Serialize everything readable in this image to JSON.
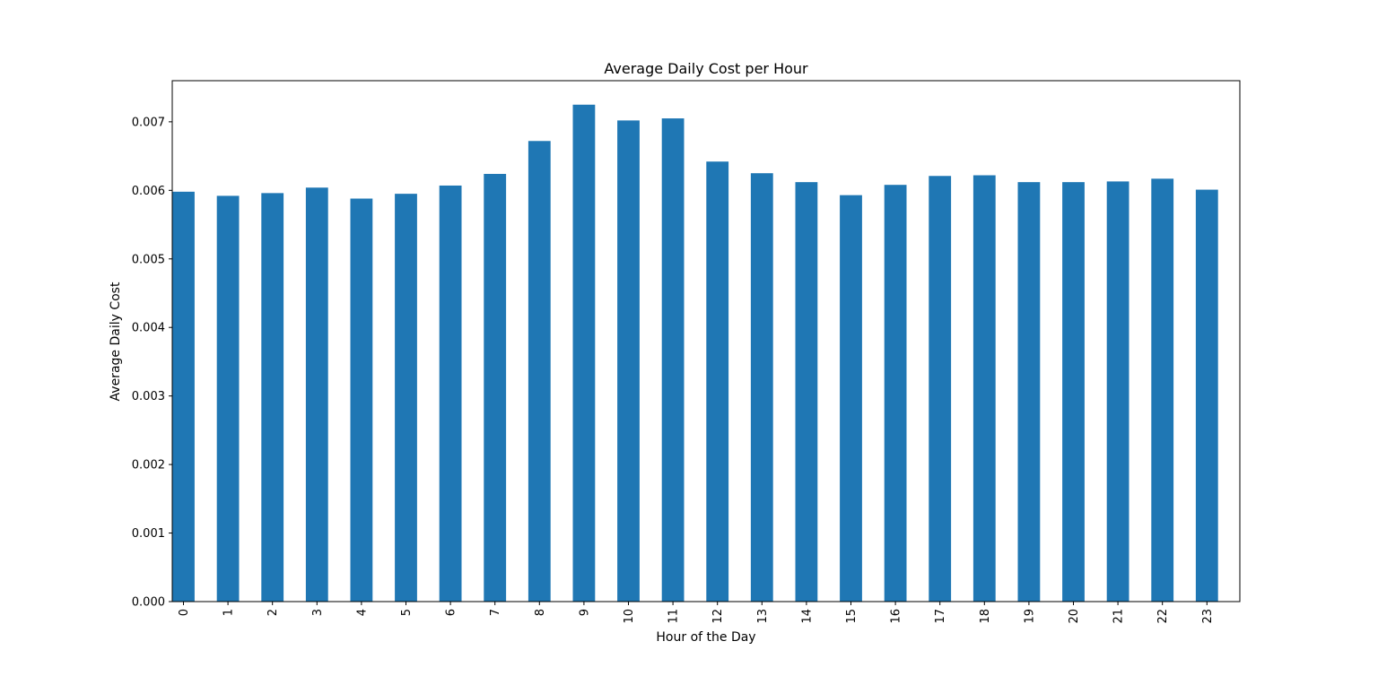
{
  "chart_data": {
    "type": "bar",
    "title": "Average Daily Cost per Hour",
    "xlabel": "Hour of the Day",
    "ylabel": "Average Daily Cost",
    "categories": [
      "0",
      "1",
      "2",
      "3",
      "4",
      "5",
      "6",
      "7",
      "8",
      "9",
      "10",
      "11",
      "12",
      "13",
      "14",
      "15",
      "16",
      "17",
      "18",
      "19",
      "20",
      "21",
      "22",
      "23"
    ],
    "values": [
      0.00598,
      0.00592,
      0.00596,
      0.00604,
      0.00588,
      0.00595,
      0.00607,
      0.00624,
      0.00672,
      0.00725,
      0.00702,
      0.00705,
      0.00642,
      0.00625,
      0.00612,
      0.00593,
      0.00608,
      0.00621,
      0.00622,
      0.00612,
      0.00612,
      0.00613,
      0.00617,
      0.00601
    ],
    "yticks": [
      "0.000",
      "0.001",
      "0.002",
      "0.003",
      "0.004",
      "0.005",
      "0.006",
      "0.007"
    ],
    "ylim": [
      0,
      0.0076
    ],
    "grid": false,
    "colors": {
      "bar": "#1f77b4",
      "axis": "#000000"
    }
  }
}
